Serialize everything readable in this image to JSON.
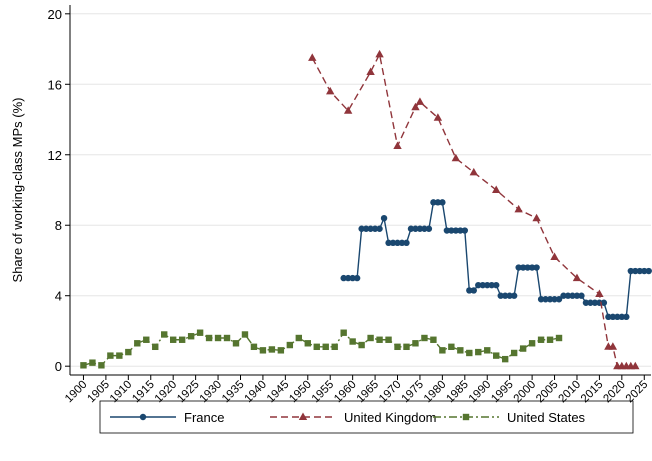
{
  "chart_data": {
    "type": "line",
    "y_label": "Share of working-class MPs (%)",
    "xlim": [
      1897,
      2026.5
    ],
    "ylim": [
      -0.5,
      20.5
    ],
    "xticks": [
      1900,
      1905,
      1910,
      1915,
      1920,
      1925,
      1930,
      1935,
      1940,
      1945,
      1950,
      1955,
      1960,
      1965,
      1970,
      1975,
      1980,
      1985,
      1990,
      1995,
      2000,
      2005,
      2010,
      2015,
      2020,
      2025
    ],
    "yticks": [
      0,
      4,
      8,
      12,
      16,
      20
    ],
    "grid": true,
    "legend": "bottom",
    "series": [
      {
        "name": "France",
        "color": "#1a476f",
        "marker": "circle",
        "dash": "solid",
        "x": [
          1958,
          1959,
          1960,
          1961,
          1962,
          1963,
          1964,
          1965,
          1966,
          1967,
          1968,
          1969,
          1970,
          1971,
          1972,
          1973,
          1974,
          1975,
          1976,
          1977,
          1978,
          1979,
          1980,
          1981,
          1982,
          1983,
          1984,
          1985,
          1986,
          1987,
          1988,
          1989,
          1990,
          1991,
          1992,
          1993,
          1994,
          1995,
          1996,
          1997,
          1998,
          1999,
          2000,
          2001,
          2002,
          2003,
          2004,
          2005,
          2006,
          2007,
          2008,
          2009,
          2010,
          2011,
          2012,
          2013,
          2014,
          2015,
          2016,
          2017,
          2018,
          2019,
          2020,
          2021,
          2022,
          2023,
          2024,
          2025,
          2026
        ],
        "values": [
          5.0,
          5.0,
          5.0,
          5.0,
          7.8,
          7.8,
          7.8,
          7.8,
          7.8,
          8.4,
          7.0,
          7.0,
          7.0,
          7.0,
          7.0,
          7.8,
          7.8,
          7.8,
          7.8,
          7.8,
          9.3,
          9.3,
          9.3,
          7.7,
          7.7,
          7.7,
          7.7,
          7.7,
          4.3,
          4.3,
          4.6,
          4.6,
          4.6,
          4.6,
          4.6,
          4.0,
          4.0,
          4.0,
          4.0,
          5.6,
          5.6,
          5.6,
          5.6,
          5.6,
          3.8,
          3.8,
          3.8,
          3.8,
          3.8,
          4.0,
          4.0,
          4.0,
          4.0,
          4.0,
          3.6,
          3.6,
          3.6,
          3.6,
          3.6,
          2.8,
          2.8,
          2.8,
          2.8,
          2.8,
          5.4,
          5.4,
          5.4,
          5.4,
          5.4
        ]
      },
      {
        "name": "United Kingdom",
        "color": "#90353b",
        "marker": "triangle",
        "dash": "dashed",
        "x": [
          1951,
          1955,
          1959,
          1964,
          1966,
          1970,
          1974,
          1975,
          1979,
          1983,
          1987,
          1992,
          1997,
          2001,
          2005,
          2010,
          2015,
          2017,
          2018,
          2019,
          2020,
          2021,
          2022,
          2023
        ],
        "values": [
          17.5,
          15.6,
          14.5,
          16.7,
          17.7,
          12.5,
          14.7,
          15.0,
          14.1,
          11.8,
          11.0,
          10.0,
          8.9,
          8.4,
          6.2,
          5.0,
          4.1,
          1.1,
          1.1,
          0,
          0,
          0,
          0,
          0
        ]
      },
      {
        "name": "United States",
        "color": "#55752f",
        "marker": "square",
        "dash": "dashdot",
        "x": [
          1900,
          1902,
          1904,
          1906,
          1908,
          1910,
          1912,
          1914,
          1916,
          1918,
          1920,
          1922,
          1924,
          1926,
          1928,
          1930,
          1932,
          1934,
          1936,
          1938,
          1940,
          1942,
          1944,
          1946,
          1948,
          1950,
          1952,
          1954,
          1956,
          1958,
          1960,
          1962,
          1964,
          1966,
          1968,
          1970,
          1972,
          1974,
          1976,
          1978,
          1980,
          1982,
          1984,
          1986,
          1988,
          1990,
          1992,
          1994,
          1996,
          1998,
          2000,
          2002,
          2004,
          2006
        ],
        "values": [
          0.05,
          0.2,
          0.05,
          0.6,
          0.6,
          0.8,
          1.3,
          1.5,
          1.1,
          1.8,
          1.5,
          1.5,
          1.7,
          1.9,
          1.6,
          1.6,
          1.6,
          1.3,
          1.8,
          1.1,
          0.9,
          0.95,
          0.9,
          1.2,
          1.6,
          1.3,
          1.1,
          1.1,
          1.1,
          1.9,
          1.4,
          1.2,
          1.6,
          1.5,
          1.5,
          1.1,
          1.1,
          1.3,
          1.6,
          1.5,
          0.9,
          1.1,
          0.9,
          0.75,
          0.8,
          0.9,
          0.6,
          0.4,
          0.75,
          1.0,
          1.3,
          1.5,
          1.5,
          1.6
        ]
      }
    ]
  }
}
